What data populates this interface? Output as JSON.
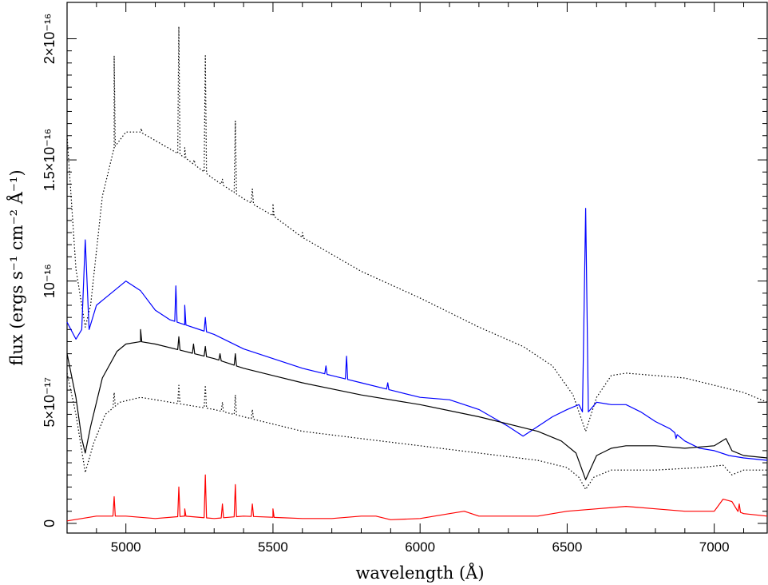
{
  "chart_data": {
    "type": "line",
    "xlabel": "wavelength (Å)",
    "ylabel": "flux (ergs s⁻¹ cm⁻² Å⁻¹)",
    "xlim": [
      4800,
      7180
    ],
    "ylim": [
      -4e-18,
      2.15e-16
    ],
    "x_ticks": [
      {
        "value": 5000,
        "label": "5000"
      },
      {
        "value": 5500,
        "label": "5500"
      },
      {
        "value": 6000,
        "label": "6000"
      },
      {
        "value": 6500,
        "label": "6500"
      },
      {
        "value": 7000,
        "label": "7000"
      }
    ],
    "y_ticks": [
      {
        "value": 0,
        "label": "0"
      },
      {
        "value": 5e-17,
        "label": "5×10⁻¹⁷"
      },
      {
        "value": 1e-16,
        "label": "10⁻¹⁶"
      },
      {
        "value": 1.5e-16,
        "label": "1.5×10⁻¹⁶"
      },
      {
        "value": 2e-16,
        "label": "2×10⁻¹⁶"
      }
    ],
    "series": [
      {
        "color": "#000000",
        "style": "dotted",
        "points": [
          [
            4800,
            1.6e-16
          ],
          [
            4830,
            1.05e-16
          ],
          [
            4862,
            8.1e-17
          ],
          [
            4880,
            9e-17
          ],
          [
            4920,
            1.35e-16
          ],
          [
            4960,
            1.55e-16
          ],
          [
            5000,
            1.615e-16
          ],
          [
            5050,
            1.615e-16
          ],
          [
            5100,
            1.58e-16
          ],
          [
            5200,
            1.51e-16
          ],
          [
            5300,
            1.42e-16
          ],
          [
            5400,
            1.34e-16
          ],
          [
            5500,
            1.27e-16
          ],
          [
            5600,
            1.18e-16
          ],
          [
            5800,
            1.04e-16
          ],
          [
            6000,
            9.3e-17
          ],
          [
            6200,
            8.1e-17
          ],
          [
            6350,
            7.3e-17
          ],
          [
            6450,
            6.5e-17
          ],
          [
            6520,
            5.3e-17
          ],
          [
            6563,
            3.8e-17
          ],
          [
            6600,
            5.2e-17
          ],
          [
            6650,
            6.1e-17
          ],
          [
            6700,
            6.2e-17
          ],
          [
            6800,
            6.1e-17
          ],
          [
            6900,
            6e-17
          ],
          [
            7000,
            5.7e-17
          ],
          [
            7100,
            5.4e-17
          ],
          [
            7180,
            5e-17
          ]
        ],
        "lines": [
          [
            4960,
            1.93e-16
          ],
          [
            5052,
            1.63e-16
          ],
          [
            5180,
            2.05e-16
          ],
          [
            5200,
            1.55e-16
          ],
          [
            5232,
            1.5e-16
          ],
          [
            5270,
            1.93e-16
          ],
          [
            5328,
            1.42e-16
          ],
          [
            5372,
            1.66e-16
          ],
          [
            5430,
            1.38e-16
          ],
          [
            5500,
            1.32e-16
          ],
          [
            5600,
            1.2e-16
          ]
        ]
      },
      {
        "color": "#0000ff",
        "style": "solid",
        "points": [
          [
            4800,
            8.3e-17
          ],
          [
            4830,
            7.6e-17
          ],
          [
            4850,
            8e-17
          ],
          [
            4862,
            1.17e-16
          ],
          [
            4875,
            8e-17
          ],
          [
            4900,
            9e-17
          ],
          [
            4950,
            9.5e-17
          ],
          [
            5000,
            1e-16
          ],
          [
            5050,
            9.6e-17
          ],
          [
            5100,
            8.8e-17
          ],
          [
            5150,
            8.4e-17
          ],
          [
            5200,
            8.2e-17
          ],
          [
            5300,
            7.8e-17
          ],
          [
            5400,
            7.2e-17
          ],
          [
            5500,
            6.8e-17
          ],
          [
            5600,
            6.4e-17
          ],
          [
            5700,
            6.1e-17
          ],
          [
            5800,
            5.8e-17
          ],
          [
            5900,
            5.5e-17
          ],
          [
            6000,
            5.2e-17
          ],
          [
            6100,
            5.1e-17
          ],
          [
            6200,
            4.7e-17
          ],
          [
            6300,
            4e-17
          ],
          [
            6350,
            3.6e-17
          ],
          [
            6400,
            4e-17
          ],
          [
            6450,
            4.4e-17
          ],
          [
            6500,
            4.7e-17
          ],
          [
            6540,
            4.9e-17
          ],
          [
            6552,
            4.6e-17
          ],
          [
            6563,
            1.3e-16
          ],
          [
            6572,
            4.6e-17
          ],
          [
            6600,
            5e-17
          ],
          [
            6650,
            4.9e-17
          ],
          [
            6700,
            4.9e-17
          ],
          [
            6750,
            4.6e-17
          ],
          [
            6800,
            4.2e-17
          ],
          [
            6850,
            3.9e-17
          ],
          [
            6900,
            3.4e-17
          ],
          [
            6950,
            3.1e-17
          ],
          [
            7000,
            3e-17
          ],
          [
            7050,
            2.8e-17
          ],
          [
            7100,
            2.7e-17
          ],
          [
            7180,
            2.6e-17
          ]
        ],
        "lines": [
          [
            5170,
            9.8e-17
          ],
          [
            5200,
            9e-17
          ],
          [
            5270,
            8.5e-17
          ],
          [
            5680,
            6.5e-17
          ],
          [
            5750,
            6.9e-17
          ],
          [
            5890,
            5.8e-17
          ],
          [
            6870,
            3.5e-17
          ]
        ]
      },
      {
        "color": "#000000",
        "style": "solid",
        "points": [
          [
            4800,
            7e-17
          ],
          [
            4830,
            5.2e-17
          ],
          [
            4850,
            3.5e-17
          ],
          [
            4862,
            2.9e-17
          ],
          [
            4880,
            4e-17
          ],
          [
            4920,
            6e-17
          ],
          [
            4970,
            7.1e-17
          ],
          [
            5000,
            7.4e-17
          ],
          [
            5050,
            7.5e-17
          ],
          [
            5100,
            7.4e-17
          ],
          [
            5200,
            7.1e-17
          ],
          [
            5300,
            6.8e-17
          ],
          [
            5400,
            6.4e-17
          ],
          [
            5500,
            6.1e-17
          ],
          [
            5600,
            5.8e-17
          ],
          [
            5800,
            5.3e-17
          ],
          [
            6000,
            4.9e-17
          ],
          [
            6200,
            4.4e-17
          ],
          [
            6400,
            3.8e-17
          ],
          [
            6480,
            3.4e-17
          ],
          [
            6530,
            2.9e-17
          ],
          [
            6563,
            1.8e-17
          ],
          [
            6600,
            2.8e-17
          ],
          [
            6650,
            3.1e-17
          ],
          [
            6700,
            3.2e-17
          ],
          [
            6800,
            3.2e-17
          ],
          [
            6900,
            3.1e-17
          ],
          [
            7000,
            3.2e-17
          ],
          [
            7040,
            3.5e-17
          ],
          [
            7060,
            3e-17
          ],
          [
            7100,
            2.8e-17
          ],
          [
            7180,
            2.7e-17
          ]
        ],
        "lines": [
          [
            5050,
            8e-17
          ],
          [
            5180,
            7.7e-17
          ],
          [
            5230,
            7.4e-17
          ],
          [
            5270,
            7.3e-17
          ],
          [
            5320,
            7e-17
          ],
          [
            5372,
            7e-17
          ]
        ]
      },
      {
        "color": "#000000",
        "style": "dotted",
        "points": [
          [
            4800,
            6.2e-17
          ],
          [
            4830,
            4.5e-17
          ],
          [
            4862,
            2.1e-17
          ],
          [
            4890,
            3.3e-17
          ],
          [
            4930,
            4.5e-17
          ],
          [
            4980,
            5e-17
          ],
          [
            5050,
            5.2e-17
          ],
          [
            5100,
            5.1e-17
          ],
          [
            5200,
            4.9e-17
          ],
          [
            5300,
            4.7e-17
          ],
          [
            5400,
            4.4e-17
          ],
          [
            5500,
            4.1e-17
          ],
          [
            5600,
            3.8e-17
          ],
          [
            5800,
            3.5e-17
          ],
          [
            6000,
            3.2e-17
          ],
          [
            6200,
            2.9e-17
          ],
          [
            6400,
            2.6e-17
          ],
          [
            6500,
            2.3e-17
          ],
          [
            6540,
            1.9e-17
          ],
          [
            6563,
            1.4e-17
          ],
          [
            6590,
            1.9e-17
          ],
          [
            6650,
            2.2e-17
          ],
          [
            6800,
            2.2e-17
          ],
          [
            6950,
            2.3e-17
          ],
          [
            7030,
            2.4e-17
          ],
          [
            7060,
            2e-17
          ],
          [
            7100,
            2.2e-17
          ],
          [
            7180,
            2.2e-17
          ]
        ],
        "lines": [
          [
            4960,
            5.4e-17
          ],
          [
            5180,
            5.7e-17
          ],
          [
            5270,
            5.7e-17
          ],
          [
            5328,
            5e-17
          ],
          [
            5372,
            5.3e-17
          ],
          [
            5430,
            4.7e-17
          ]
        ]
      },
      {
        "color": "#ff0000",
        "style": "solid",
        "points": [
          [
            4800,
            1e-18
          ],
          [
            4900,
            3e-18
          ],
          [
            5000,
            3e-18
          ],
          [
            5100,
            2e-18
          ],
          [
            5200,
            3e-18
          ],
          [
            5300,
            2e-18
          ],
          [
            5400,
            3e-18
          ],
          [
            5500,
            2.5e-18
          ],
          [
            5600,
            2e-18
          ],
          [
            5700,
            2e-18
          ],
          [
            5800,
            3e-18
          ],
          [
            5850,
            3e-18
          ],
          [
            5900,
            1.5e-18
          ],
          [
            6000,
            2e-18
          ],
          [
            6100,
            4e-18
          ],
          [
            6150,
            5e-18
          ],
          [
            6200,
            3e-18
          ],
          [
            6300,
            3e-18
          ],
          [
            6400,
            3e-18
          ],
          [
            6500,
            5e-18
          ],
          [
            6600,
            6e-18
          ],
          [
            6700,
            7e-18
          ],
          [
            6800,
            6e-18
          ],
          [
            6900,
            5e-18
          ],
          [
            7000,
            5e-18
          ],
          [
            7030,
            1e-17
          ],
          [
            7060,
            9e-18
          ],
          [
            7080,
            5e-18
          ],
          [
            7100,
            4e-18
          ],
          [
            7180,
            3e-18
          ]
        ],
        "lines": [
          [
            4960,
            1.1e-17
          ],
          [
            5180,
            1.5e-17
          ],
          [
            5200,
            6e-18
          ],
          [
            5270,
            2e-17
          ],
          [
            5328,
            8e-18
          ],
          [
            5372,
            1.6e-17
          ],
          [
            5430,
            8e-18
          ],
          [
            5500,
            6e-18
          ],
          [
            7085,
            8e-18
          ]
        ]
      }
    ]
  }
}
